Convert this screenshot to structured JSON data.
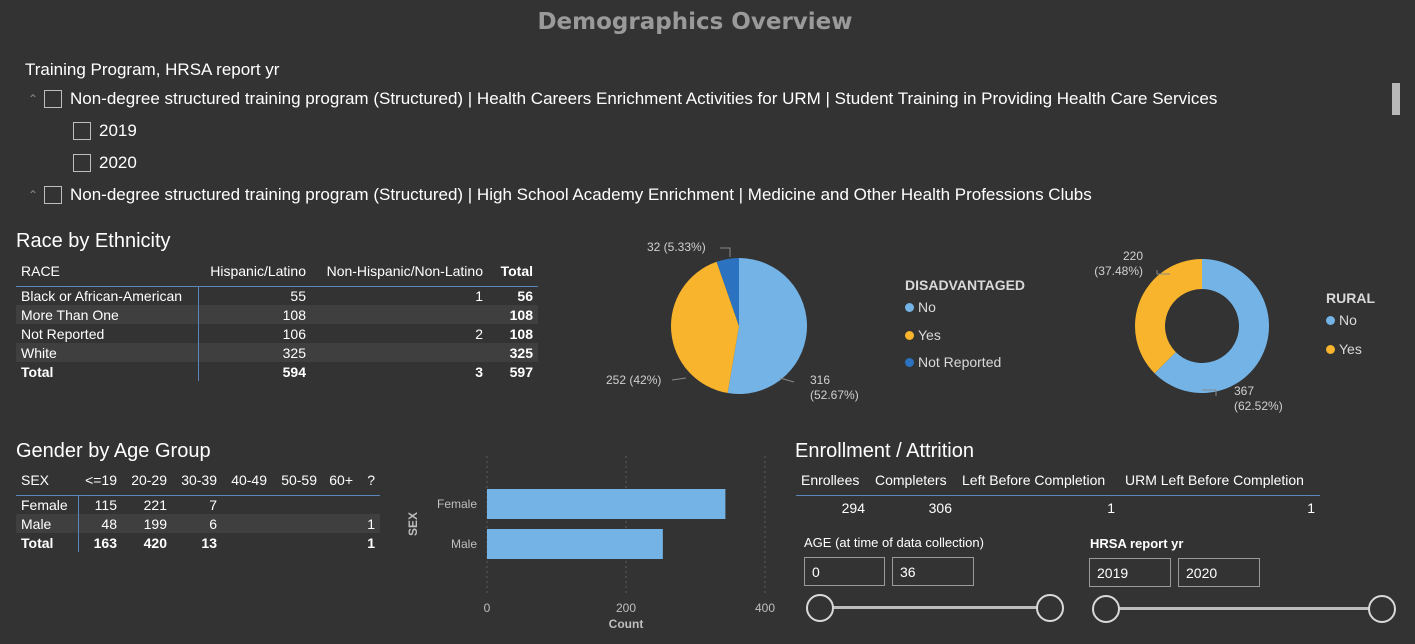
{
  "page": {
    "title": "Demographics Overview"
  },
  "colors": {
    "blue": "#74b3e6",
    "yellow": "#f7b42c",
    "darkblue": "#2b72c0",
    "background": "#333333",
    "rule": "#5a86b8"
  },
  "slicer": {
    "title": "Training Program, HRSA report yr",
    "groups": [
      {
        "label": "Non-degree structured training program (Structured) | Health Careers Enrichment Activities for URM | Student Training in Providing Health Care Services",
        "children": [
          "2019",
          "2020"
        ]
      },
      {
        "label": "Non-degree structured training program (Structured) | High School Academy Enrichment | Medicine and Other Health Professions Clubs"
      }
    ]
  },
  "race": {
    "title": "Race by Ethnicity",
    "headers": [
      "RACE",
      "Hispanic/Latino",
      "Non-Hispanic/Non-Latino",
      "Total"
    ],
    "rows": [
      [
        "Black or African-American",
        "55",
        "1",
        "56"
      ],
      [
        "More Than One",
        "108",
        "",
        "108"
      ],
      [
        "Not Reported",
        "106",
        "2",
        "108"
      ],
      [
        "White",
        "325",
        "",
        "325"
      ]
    ],
    "total": [
      "Total",
      "594",
      "3",
      "597"
    ]
  },
  "disadvantaged": {
    "legend_title": "DISADVANTAGED",
    "legend": [
      "No",
      "Yes",
      "Not Reported"
    ],
    "labels": {
      "yes": "252 (42%)",
      "notreported": "32 (5.33%)",
      "no_count": "316",
      "no_pct": "(52.67%)"
    }
  },
  "rural": {
    "legend_title": "RURAL",
    "legend": [
      "No",
      "Yes"
    ],
    "labels": {
      "yes_count": "220",
      "yes_pct": "(37.48%)",
      "no_count": "367",
      "no_pct": "(62.52%)"
    }
  },
  "gender": {
    "title": "Gender by Age Group",
    "headers": [
      "SEX",
      "<=19",
      "20-29",
      "30-39",
      "40-49",
      "50-59",
      "60+",
      "?"
    ],
    "rows": [
      [
        "Female",
        "115",
        "221",
        "7",
        "",
        "",
        "",
        ""
      ],
      [
        "Male",
        "48",
        "199",
        "6",
        "",
        "",
        "",
        "1"
      ]
    ],
    "total": [
      "Total",
      "163",
      "420",
      "13",
      "",
      "",
      "",
      "1"
    ]
  },
  "chart_data": {
    "type": "bar",
    "orientation": "horizontal",
    "categories": [
      "Female",
      "Male"
    ],
    "values": [
      343,
      253
    ],
    "xlabel": "Count",
    "ylabel": "SEX",
    "xlim": [
      0,
      400
    ],
    "xticks": [
      "0",
      "200",
      "400"
    ],
    "grid": true
  },
  "enrollment": {
    "title": "Enrollment / Attrition",
    "headers": [
      "Enrollees",
      "Completers",
      "Left Before Completion",
      "URM Left Before Completion"
    ],
    "values": [
      "294",
      "306",
      "1",
      "1"
    ]
  },
  "age_filter": {
    "label": "AGE (at time of data collection)",
    "min": "0",
    "max": "36"
  },
  "year_filter": {
    "label": "HRSA report yr",
    "min": "2019",
    "max": "2020"
  }
}
